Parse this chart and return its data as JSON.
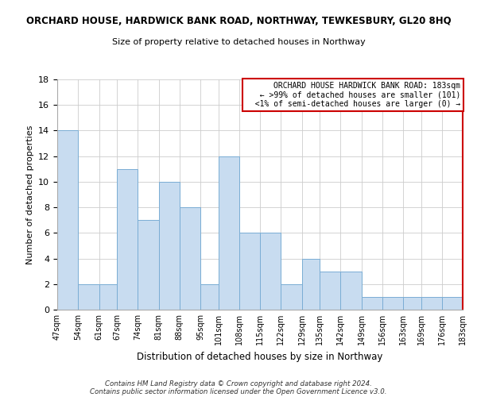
{
  "title": "ORCHARD HOUSE, HARDWICK BANK ROAD, NORTHWAY, TEWKESBURY, GL20 8HQ",
  "subtitle": "Size of property relative to detached houses in Northway",
  "xlabel": "Distribution of detached houses by size in Northway",
  "ylabel": "Number of detached properties",
  "bar_color": "#c8dcf0",
  "bar_edge_color": "#7aadd4",
  "bins": [
    47,
    54,
    61,
    67,
    74,
    81,
    88,
    95,
    101,
    108,
    115,
    122,
    129,
    135,
    142,
    149,
    156,
    163,
    169,
    176,
    183
  ],
  "counts": [
    14,
    2,
    2,
    11,
    7,
    10,
    8,
    2,
    12,
    6,
    6,
    2,
    4,
    3,
    3,
    1,
    1,
    1,
    1,
    1
  ],
  "tick_labels": [
    "47sqm",
    "54sqm",
    "61sqm",
    "67sqm",
    "74sqm",
    "81sqm",
    "88sqm",
    "95sqm",
    "101sqm",
    "108sqm",
    "115sqm",
    "122sqm",
    "129sqm",
    "135sqm",
    "142sqm",
    "149sqm",
    "156sqm",
    "163sqm",
    "169sqm",
    "176sqm",
    "183sqm"
  ],
  "ylim": [
    0,
    18
  ],
  "yticks": [
    0,
    2,
    4,
    6,
    8,
    10,
    12,
    14,
    16,
    18
  ],
  "annotation_title": "ORCHARD HOUSE HARDWICK BANK ROAD: 183sqm",
  "annotation_line1": "← >99% of detached houses are smaller (101)",
  "annotation_line2": "<1% of semi-detached houses are larger (0) →",
  "annotation_box_color": "#ffffff",
  "annotation_box_edge": "#cc0000",
  "right_border_color": "#cc0000",
  "footer1": "Contains HM Land Registry data © Crown copyright and database right 2024.",
  "footer2": "Contains public sector information licensed under the Open Government Licence v3.0."
}
